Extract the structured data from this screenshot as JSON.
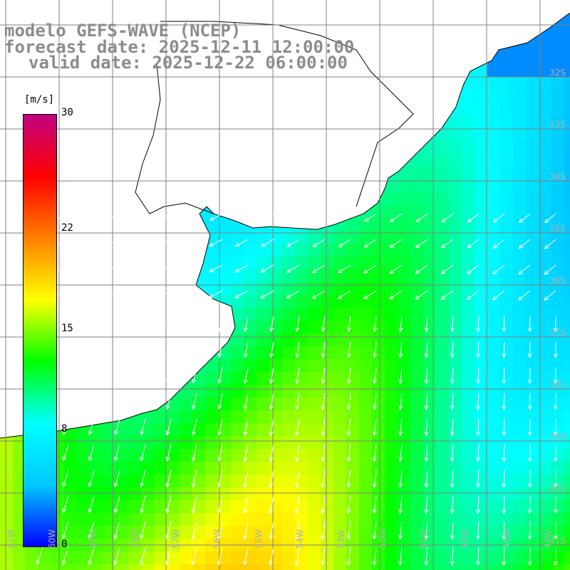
{
  "title": {
    "line1": "modelo GEFS-WAVE (NCEP)",
    "line2": "forecast date: 2025-12-11 12:00:00",
    "line3": "valid date: 2025-12-22 06:00:00"
  },
  "colorbar": {
    "unit": "[m/s]",
    "ticks": [
      "30",
      "22",
      "15",
      "8",
      "0"
    ],
    "tick_values": [
      30,
      22,
      15,
      8,
      0
    ],
    "range": [
      0,
      30
    ],
    "colors": [
      "#0000ff",
      "#00c8ff",
      "#00ffff",
      "#00ff00",
      "#ffff00",
      "#ff8000",
      "#ff0000",
      "#c00080"
    ]
  },
  "map": {
    "latitude_labels": [
      "32S",
      "33S",
      "34S",
      "35S",
      "36S",
      "37S",
      "38S",
      "39S",
      "40S",
      "41S"
    ],
    "longitude_labels": [
      "61W",
      "60W",
      "59W",
      "58W",
      "57W",
      "56W",
      "55W",
      "54W",
      "53W",
      "52W",
      "51W",
      "50W",
      "49W",
      "48W"
    ],
    "land_color": "#ffffff",
    "grid_color": "#808080",
    "arrow_color": "#ffffff"
  }
}
